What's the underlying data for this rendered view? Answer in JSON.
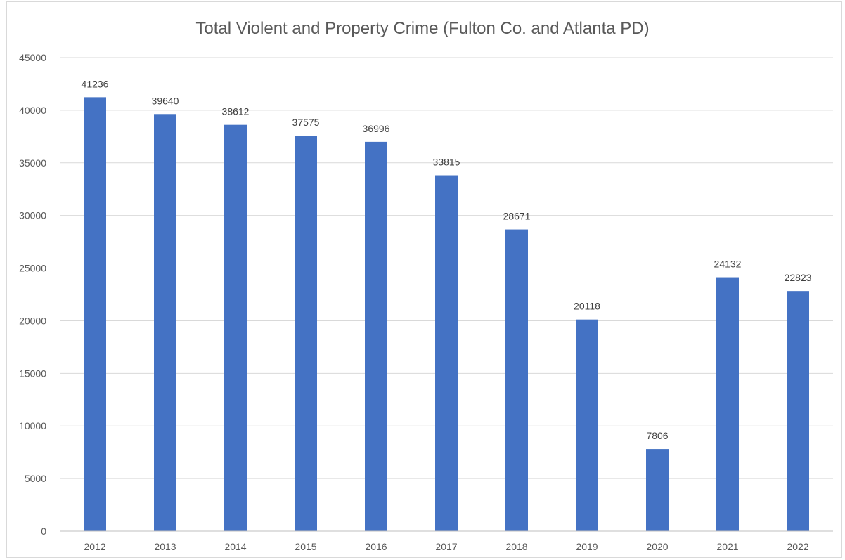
{
  "chart_data": {
    "type": "bar",
    "title": "Total Violent and Property Crime (Fulton Co. and Atlanta PD)",
    "xlabel": "",
    "ylabel": "",
    "categories": [
      "2012",
      "2013",
      "2014",
      "2015",
      "2016",
      "2017",
      "2018",
      "2019",
      "2020",
      "2021",
      "2022"
    ],
    "values": [
      41236,
      39640,
      38612,
      37575,
      36996,
      33815,
      28671,
      20118,
      7806,
      24132,
      22823
    ],
    "ylim": [
      0,
      45000
    ],
    "yticks": [
      "0",
      "5000",
      "10000",
      "15000",
      "20000",
      "25000",
      "30000",
      "35000",
      "40000",
      "45000"
    ],
    "data_labels": [
      "41236",
      "39640",
      "38612",
      "37575",
      "36996",
      "33815",
      "28671",
      "20118",
      "7806",
      "24132",
      "22823"
    ],
    "bar_color": "#4472c4",
    "grid": true,
    "legend": "none"
  }
}
